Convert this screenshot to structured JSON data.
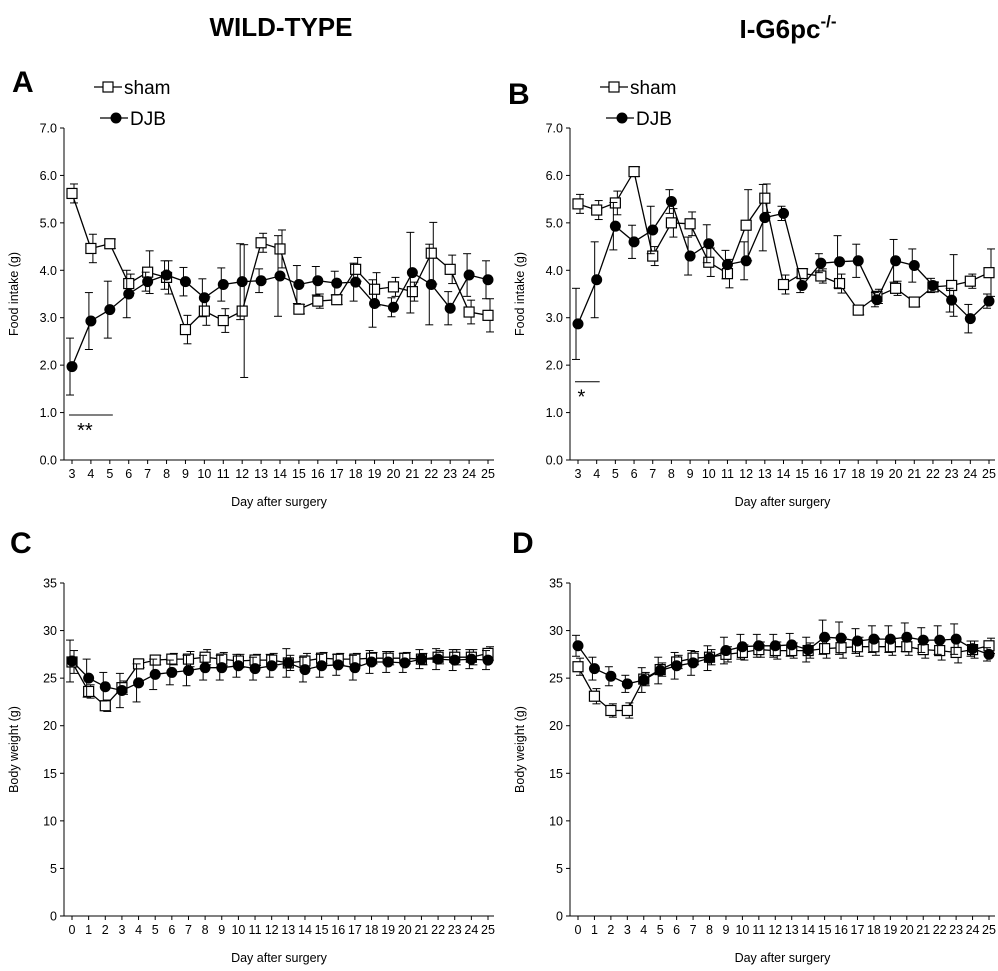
{
  "figure": {
    "col_titles": [
      {
        "text": "WILD-TYPE",
        "sup": ""
      },
      {
        "text": "I-G6pc",
        "sup": "-/-"
      }
    ],
    "legend": {
      "sham": "sham",
      "djb": "DJB"
    }
  },
  "chart_data": [
    {
      "panel": "A",
      "type": "line",
      "xlabel": "Day after surgery",
      "ylabel": "Food intake (g)",
      "ylim": [
        0,
        7
      ],
      "yticks": [
        "0.0",
        "1.0",
        "2.0",
        "3.0",
        "4.0",
        "5.0",
        "6.0",
        "7.0"
      ],
      "x": [
        3,
        4,
        5,
        6,
        7,
        8,
        9,
        10,
        11,
        12,
        13,
        14,
        15,
        16,
        17,
        18,
        19,
        20,
        21,
        22,
        23,
        24,
        25
      ],
      "series": [
        {
          "name": "sham",
          "marker": "open-square",
          "values": [
            5.62,
            4.46,
            4.56,
            3.72,
            3.96,
            3.85,
            2.75,
            3.14,
            2.94,
            3.14,
            4.58,
            4.45,
            3.18,
            3.35,
            3.38,
            4.02,
            3.6,
            3.65,
            3.55,
            4.36,
            4.02,
            3.12,
            3.05
          ],
          "err": [
            0.2,
            0.3,
            0.1,
            0.2,
            0.45,
            0.35,
            0.3,
            0.3,
            0.25,
            1.4,
            0.2,
            0.4,
            0.1,
            0.15,
            0.1,
            0.25,
            0.35,
            0.2,
            0.2,
            0.65,
            0.3,
            0.25,
            0.35
          ]
        },
        {
          "name": "DJB",
          "marker": "filled-circle",
          "values": [
            1.97,
            2.93,
            3.17,
            3.5,
            3.76,
            3.9,
            3.76,
            3.42,
            3.7,
            3.76,
            3.78,
            3.88,
            3.7,
            3.78,
            3.73,
            3.75,
            3.3,
            3.22,
            3.95,
            3.7,
            3.2,
            3.9,
            3.8
          ],
          "err": [
            0.6,
            0.6,
            0.6,
            0.5,
            0.2,
            0.3,
            0.3,
            0.4,
            0.35,
            0.8,
            0.25,
            0.85,
            0.4,
            0.3,
            0.25,
            0.4,
            0.5,
            0.2,
            0.85,
            0.85,
            0.35,
            0.45,
            0.4
          ]
        }
      ],
      "annotation": {
        "text": "**",
        "x_from": 3,
        "x_to": 5,
        "y": 0.95
      }
    },
    {
      "panel": "B",
      "type": "line",
      "xlabel": "Day after surgery",
      "ylabel": "Food intake (g)",
      "ylim": [
        0,
        7
      ],
      "yticks": [
        "0.0",
        "1.0",
        "2.0",
        "3.0",
        "4.0",
        "5.0",
        "6.0",
        "7.0"
      ],
      "x": [
        3,
        4,
        5,
        6,
        7,
        8,
        9,
        10,
        11,
        12,
        13,
        14,
        15,
        16,
        17,
        18,
        19,
        20,
        21,
        22,
        23,
        24,
        25
      ],
      "series": [
        {
          "name": "sham",
          "marker": "open-square",
          "values": [
            5.4,
            5.27,
            5.42,
            6.08,
            4.3,
            5.0,
            4.98,
            4.17,
            3.93,
            4.95,
            5.52,
            3.7,
            3.93,
            3.88,
            3.72,
            3.16,
            3.45,
            3.62,
            3.33,
            3.65,
            3.68,
            3.77,
            3.95
          ],
          "err": [
            0.2,
            0.2,
            0.25,
            0.1,
            0.2,
            0.3,
            0.25,
            0.3,
            0.3,
            0.75,
            0.3,
            0.2,
            0.1,
            0.15,
            0.2,
            0.1,
            0.15,
            0.15,
            0.1,
            0.1,
            0.65,
            0.15,
            0.5
          ]
        },
        {
          "name": "DJB",
          "marker": "filled-circle",
          "values": [
            2.87,
            3.8,
            4.93,
            4.6,
            4.85,
            5.45,
            4.3,
            4.56,
            4.12,
            4.2,
            5.11,
            5.2,
            3.68,
            4.15,
            4.18,
            4.2,
            3.38,
            4.2,
            4.1,
            3.68,
            3.37,
            2.98,
            3.35
          ],
          "err": [
            0.75,
            0.8,
            0.5,
            0.35,
            0.5,
            0.25,
            0.4,
            0.4,
            0.3,
            0.4,
            0.7,
            0.15,
            0.15,
            0.2,
            0.55,
            0.35,
            0.15,
            0.45,
            0.35,
            0.15,
            0.25,
            0.3,
            0.15
          ]
        }
      ],
      "annotation": {
        "text": "*",
        "x_from": 3,
        "x_to": 4,
        "y": 1.65
      }
    },
    {
      "panel": "C",
      "type": "line",
      "xlabel": "Day after surgery",
      "ylabel": "Body weight (g)",
      "ylim": [
        0,
        35
      ],
      "yticks": [
        "0",
        "5",
        "10",
        "15",
        "20",
        "25",
        "30",
        "35"
      ],
      "x": [
        0,
        1,
        2,
        3,
        4,
        5,
        6,
        7,
        8,
        9,
        10,
        11,
        12,
        13,
        14,
        15,
        16,
        17,
        18,
        19,
        20,
        21,
        22,
        23,
        24,
        25
      ],
      "series": [
        {
          "name": "sham",
          "marker": "open-square",
          "values": [
            26.7,
            23.6,
            22.1,
            24.0,
            26.5,
            26.9,
            27.0,
            27.0,
            27.2,
            27.0,
            26.8,
            26.9,
            26.9,
            26.6,
            26.8,
            27.1,
            27.0,
            27.0,
            27.1,
            27.1,
            27.1,
            27.0,
            27.2,
            27.2,
            27.2,
            27.6
          ],
          "err": [
            1.2,
            0.7,
            0.6,
            0.7,
            0.4,
            0.5,
            0.6,
            0.8,
            0.8,
            0.7,
            0.7,
            0.6,
            0.7,
            0.8,
            0.8,
            0.6,
            0.6,
            0.6,
            0.6,
            0.7,
            0.6,
            0.6,
            0.7,
            0.8,
            0.8,
            0.7
          ]
        },
        {
          "name": "DJB",
          "marker": "filled-circle",
          "values": [
            26.8,
            25.0,
            24.1,
            23.7,
            24.5,
            25.4,
            25.6,
            25.8,
            26.1,
            26.1,
            26.3,
            26.0,
            26.3,
            26.6,
            25.9,
            26.3,
            26.4,
            26.1,
            26.7,
            26.7,
            26.6,
            27.0,
            27.0,
            26.9,
            27.0,
            26.9
          ],
          "err": [
            2.2,
            2.0,
            1.5,
            1.8,
            2.0,
            1.6,
            1.3,
            1.6,
            1.3,
            1.3,
            1.2,
            1.2,
            1.2,
            1.5,
            1.3,
            1.2,
            1.1,
            1.3,
            1.2,
            1.1,
            1.0,
            1.0,
            1.1,
            1.1,
            1.0,
            1.0
          ]
        }
      ]
    },
    {
      "panel": "D",
      "type": "line",
      "xlabel": "Day after surgery",
      "ylabel": "Body weight (g)",
      "ylim": [
        0,
        35
      ],
      "yticks": [
        "0",
        "5",
        "10",
        "15",
        "20",
        "25",
        "30",
        "35"
      ],
      "x": [
        0,
        1,
        2,
        3,
        4,
        5,
        6,
        7,
        8,
        9,
        10,
        11,
        12,
        13,
        14,
        15,
        16,
        17,
        18,
        19,
        20,
        21,
        22,
        23,
        24,
        25
      ],
      "series": [
        {
          "name": "sham",
          "marker": "open-square",
          "values": [
            26.2,
            23.1,
            21.6,
            21.6,
            24.9,
            25.9,
            26.7,
            27.1,
            27.2,
            27.5,
            27.7,
            28.0,
            27.9,
            27.9,
            27.9,
            28.1,
            28.2,
            28.3,
            28.3,
            28.3,
            28.3,
            28.0,
            27.9,
            27.7,
            28.0,
            28.4
          ],
          "err": [
            0.9,
            0.8,
            0.7,
            0.8,
            0.7,
            0.7,
            0.7,
            0.7,
            0.8,
            0.8,
            0.8,
            0.8,
            0.9,
            0.8,
            0.8,
            1.0,
            1.1,
            1.0,
            0.9,
            0.9,
            0.9,
            0.9,
            1.0,
            1.1,
            0.9,
            0.8
          ]
        },
        {
          "name": "DJB",
          "marker": "filled-circle",
          "values": [
            28.4,
            26.0,
            25.2,
            24.4,
            24.8,
            25.8,
            26.3,
            26.6,
            27.1,
            27.9,
            28.3,
            28.4,
            28.4,
            28.5,
            28.0,
            29.3,
            29.2,
            28.9,
            29.1,
            29.1,
            29.3,
            29.0,
            29.0,
            29.1,
            28.1,
            27.5
          ],
          "err": [
            1.1,
            1.2,
            1.0,
            0.9,
            1.3,
            1.4,
            1.4,
            1.3,
            1.3,
            1.4,
            1.3,
            1.2,
            1.2,
            1.2,
            1.3,
            1.8,
            1.7,
            1.3,
            1.4,
            1.4,
            1.5,
            1.3,
            1.5,
            1.6,
            0.8,
            0.7
          ]
        }
      ]
    }
  ]
}
